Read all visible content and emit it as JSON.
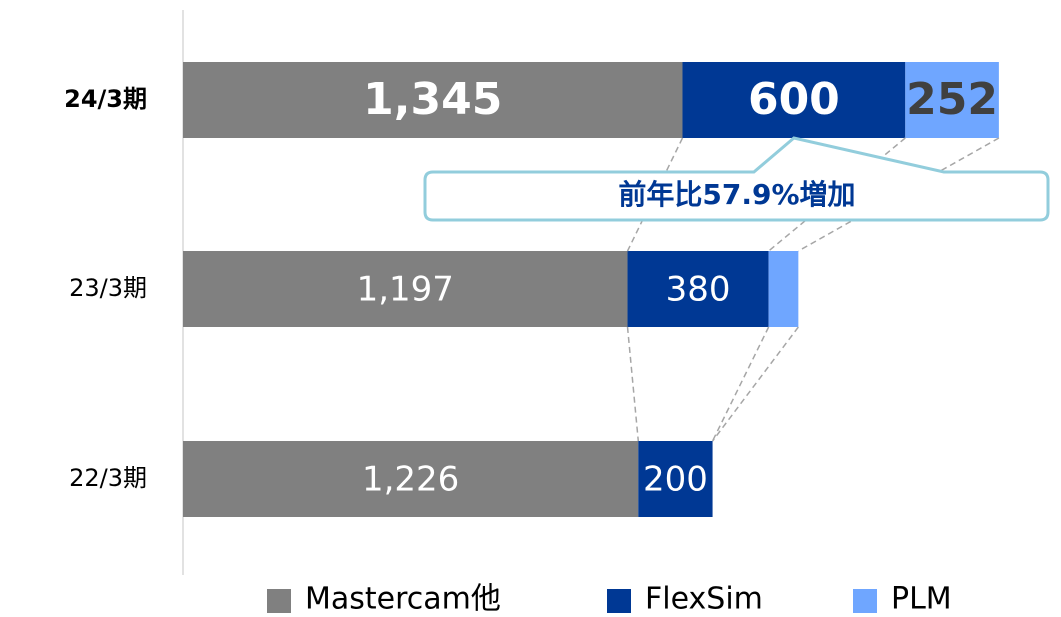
{
  "chart_data": {
    "type": "stacked_bar_horizontal",
    "categories": [
      "24/3期",
      "23/3期",
      "22/3期"
    ],
    "series": [
      {
        "name": "Mastercam他",
        "color": "#808080",
        "values": [
          1345,
          1197,
          1226
        ],
        "value_labels": [
          "1,345",
          "1,197",
          "1,226"
        ]
      },
      {
        "name": "FlexSim",
        "color": "#003894",
        "values": [
          600,
          380,
          200
        ]
      },
      {
        "name": "PLM",
        "color": "#6fa6ff",
        "values": [
          252,
          80,
          null
        ],
        "value_labels": [
          "252",
          null,
          null
        ]
      }
    ],
    "xlim": [
      0,
      2200
    ],
    "annotation": "前年比57.9%増加",
    "legend": "bottom"
  }
}
